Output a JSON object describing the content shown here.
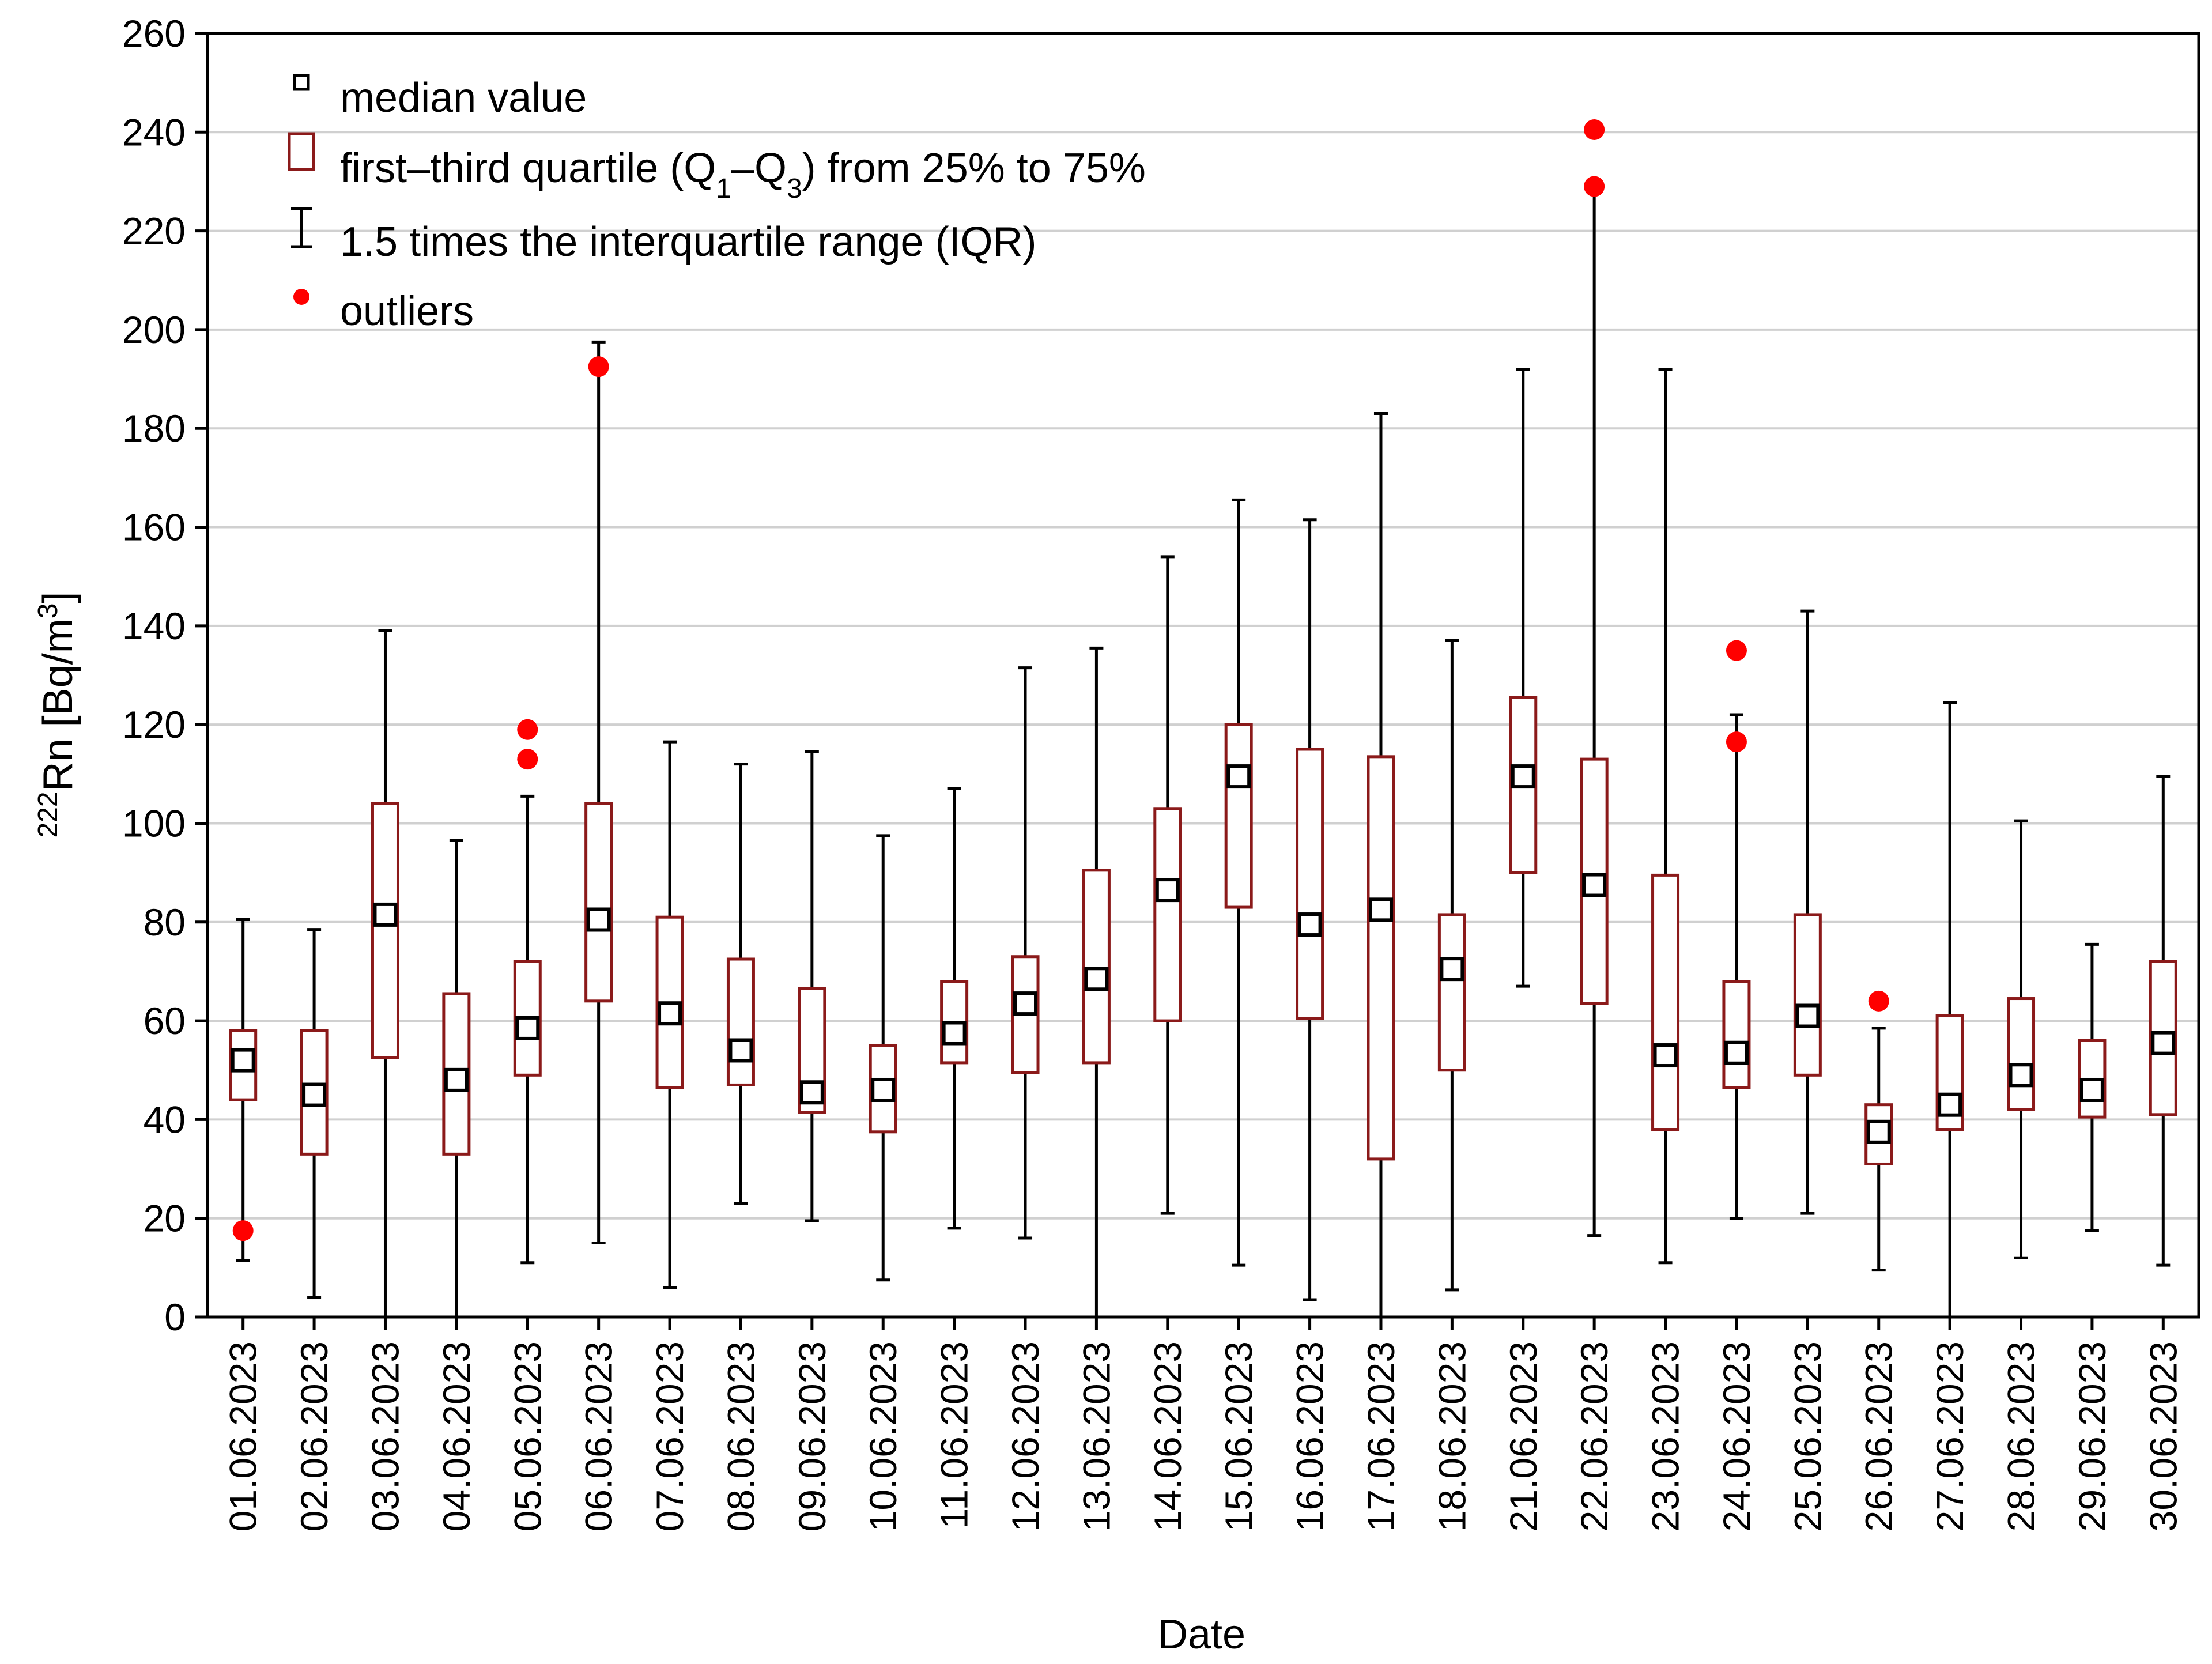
{
  "chart_data": {
    "type": "boxplot",
    "title": "",
    "xlabel": "Date",
    "ylabel": {
      "prefix_sup": "222",
      "main": "Rn [Bq/m",
      "unit_sup": "3",
      "suffix": "]"
    },
    "ylim": [
      0,
      260
    ],
    "yticks": [
      "0",
      "20",
      "40",
      "60",
      "80",
      "100",
      "120",
      "140",
      "160",
      "180",
      "200",
      "220",
      "240",
      "260"
    ],
    "grid": "horizontal",
    "legend_position": "top-left",
    "legend": {
      "median": "median value",
      "quartile_prefix": "first–third quartile (Q",
      "quartile_sub1": "1",
      "quartile_mid": "–Q",
      "quartile_sub2": "3",
      "quartile_suffix": ") from 25% to 75%",
      "whisker": "1.5 times the interquartile range (IQR)",
      "outlier": "outliers"
    },
    "colors": {
      "box": "#8b1a1a",
      "median": "#000000",
      "whisker": "#000000",
      "outlier": "#ff0000",
      "grid": "#d0d0d0"
    },
    "categories": [
      "01.06.2023",
      "02.06.2023",
      "03.06.2023",
      "04.06.2023",
      "05.06.2023",
      "06.06.2023",
      "07.06.2023",
      "08.06.2023",
      "09.06.2023",
      "10.06.2023",
      "11.06.2023",
      "12.06.2023",
      "13.06.2023",
      "14.06.2023",
      "15.06.2023",
      "16.06.2023",
      "17.06.2023",
      "18.06.2023",
      "21.06.2023",
      "22.06.2023",
      "23.06.2023",
      "24.06.2023",
      "25.06.2023",
      "26.06.2023",
      "27.06.2023",
      "28.06.2023",
      "29.06.2023",
      "30.06.2023"
    ],
    "series": [
      {
        "date": "01.06.2023",
        "min": 11.5,
        "q1": 44,
        "median": 52,
        "q3": 58,
        "max": 80.5,
        "outliers": [
          17.5
        ]
      },
      {
        "date": "02.06.2023",
        "min": 4,
        "q1": 33,
        "median": 45,
        "q3": 58,
        "max": 78.5,
        "outliers": []
      },
      {
        "date": "03.06.2023",
        "min": 0,
        "q1": 52.5,
        "median": 81.5,
        "q3": 104,
        "max": 139,
        "outliers": []
      },
      {
        "date": "04.06.2023",
        "min": 0,
        "q1": 33,
        "median": 48,
        "q3": 65.5,
        "max": 96.5,
        "outliers": []
      },
      {
        "date": "05.06.2023",
        "min": 11,
        "q1": 49,
        "median": 58.5,
        "q3": 72,
        "max": 105.5,
        "outliers": [
          113,
          119
        ]
      },
      {
        "date": "06.06.2023",
        "min": 15,
        "q1": 64,
        "median": 80.5,
        "q3": 104,
        "max": 197.5,
        "outliers": [
          192.5
        ]
      },
      {
        "date": "07.06.2023",
        "min": 6,
        "q1": 46.5,
        "median": 61.5,
        "q3": 81,
        "max": 116.5,
        "outliers": []
      },
      {
        "date": "08.06.2023",
        "min": 23,
        "q1": 47,
        "median": 54,
        "q3": 72.5,
        "max": 112,
        "outliers": []
      },
      {
        "date": "09.06.2023",
        "min": 19.5,
        "q1": 41.5,
        "median": 45.5,
        "q3": 66.5,
        "max": 114.5,
        "outliers": []
      },
      {
        "date": "10.06.2023",
        "min": 7.5,
        "q1": 37.5,
        "median": 46,
        "q3": 55,
        "max": 97.5,
        "outliers": []
      },
      {
        "date": "11.06.2023",
        "min": 18,
        "q1": 51.5,
        "median": 57.5,
        "q3": 68,
        "max": 107,
        "outliers": []
      },
      {
        "date": "12.06.2023",
        "min": 16,
        "q1": 49.5,
        "median": 63.5,
        "q3": 73,
        "max": 131.5,
        "outliers": []
      },
      {
        "date": "13.06.2023",
        "min": 0,
        "q1": 51.5,
        "median": 68.5,
        "q3": 90.5,
        "max": 135.5,
        "outliers": []
      },
      {
        "date": "14.06.2023",
        "min": 21,
        "q1": 60,
        "median": 86.5,
        "q3": 103,
        "max": 154,
        "outliers": []
      },
      {
        "date": "15.06.2023",
        "min": 10.5,
        "q1": 83,
        "median": 109.5,
        "q3": 120,
        "max": 165.5,
        "outliers": []
      },
      {
        "date": "16.06.2023",
        "min": 3.5,
        "q1": 60.5,
        "median": 79.5,
        "q3": 115,
        "max": 161.5,
        "outliers": []
      },
      {
        "date": "17.06.2023",
        "min": 0,
        "q1": 32,
        "median": 82.5,
        "q3": 113.5,
        "max": 183,
        "outliers": []
      },
      {
        "date": "18.06.2023",
        "min": 5.5,
        "q1": 50,
        "median": 70.5,
        "q3": 81.5,
        "max": 137,
        "outliers": []
      },
      {
        "date": "21.06.2023",
        "min": 67,
        "q1": 90,
        "median": 109.5,
        "q3": 125.5,
        "max": 192,
        "outliers": []
      },
      {
        "date": "22.06.2023",
        "min": 16.5,
        "q1": 63.5,
        "median": 87.5,
        "q3": 113,
        "max": 229,
        "outliers": [
          229,
          240.5
        ]
      },
      {
        "date": "23.06.2023",
        "min": 11,
        "q1": 38,
        "median": 53,
        "q3": 89.5,
        "max": 192,
        "outliers": []
      },
      {
        "date": "24.06.2023",
        "min": 20,
        "q1": 46.5,
        "median": 53.5,
        "q3": 68,
        "max": 122,
        "outliers": [
          116.5,
          135
        ]
      },
      {
        "date": "25.06.2023",
        "min": 21,
        "q1": 49,
        "median": 61,
        "q3": 81.5,
        "max": 143,
        "outliers": []
      },
      {
        "date": "26.06.2023",
        "min": 9.5,
        "q1": 31,
        "median": 37.5,
        "q3": 43,
        "max": 58.5,
        "outliers": [
          64
        ]
      },
      {
        "date": "27.06.2023",
        "min": 0,
        "q1": 38,
        "median": 43,
        "q3": 61,
        "max": 124.5,
        "outliers": []
      },
      {
        "date": "28.06.2023",
        "min": 12,
        "q1": 42,
        "median": 49,
        "q3": 64.5,
        "max": 100.5,
        "outliers": []
      },
      {
        "date": "29.06.2023",
        "min": 17.5,
        "q1": 40.5,
        "median": 46,
        "q3": 56,
        "max": 75.5,
        "outliers": []
      },
      {
        "date": "30.06.2023",
        "min": 10.5,
        "q1": 41,
        "median": 55.5,
        "q3": 72,
        "max": 109.5,
        "outliers": []
      }
    ]
  }
}
